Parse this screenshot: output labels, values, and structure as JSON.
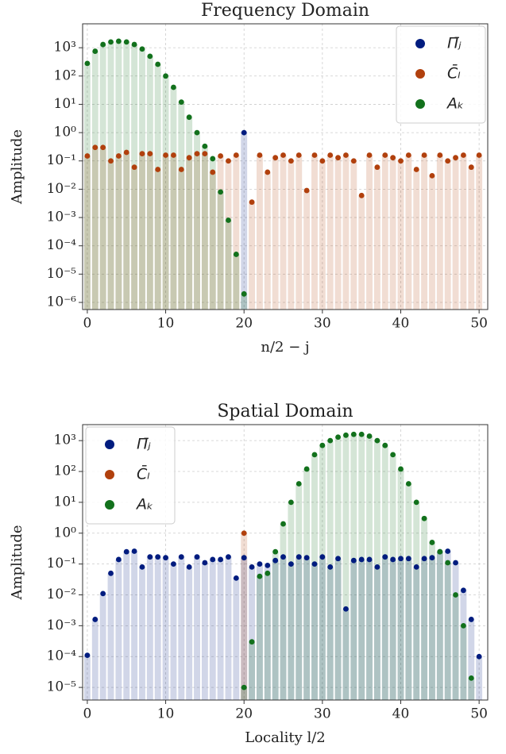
{
  "chart_data": [
    {
      "type": "bar-scatter",
      "title": "Frequency Domain",
      "xlabel": "n/2 − j",
      "ylabel": "Amplitude",
      "log_y": true,
      "grid": true,
      "legend": "upper right",
      "xlim": [
        -0.6,
        51.1
      ],
      "xticks": [
        0,
        10,
        20,
        30,
        40,
        50
      ],
      "ylim": [
        5.6e-07,
        7000
      ],
      "yticks": [
        {
          "value": 1e-06,
          "label": "10⁻⁶"
        },
        {
          "value": 1e-05,
          "label": "10⁻⁵"
        },
        {
          "value": 0.0001,
          "label": "10⁻⁴"
        },
        {
          "value": 0.001,
          "label": "10⁻³"
        },
        {
          "value": 0.01,
          "label": "10⁻²"
        },
        {
          "value": 0.1,
          "label": "10⁻¹"
        },
        {
          "value": 1,
          "label": "10⁰"
        },
        {
          "value": 10,
          "label": "10¹"
        },
        {
          "value": 100,
          "label": "10²"
        },
        {
          "value": 1000,
          "label": "10³"
        }
      ],
      "x": [
        0,
        1,
        2,
        3,
        4,
        5,
        6,
        7,
        8,
        9,
        10,
        11,
        12,
        13,
        14,
        15,
        16,
        17,
        18,
        19,
        20,
        21,
        22,
        23,
        24,
        25,
        26,
        27,
        28,
        29,
        30,
        31,
        32,
        33,
        34,
        35,
        36,
        37,
        38,
        39,
        40,
        41,
        42,
        43,
        44,
        45,
        46,
        47,
        48,
        49,
        50
      ],
      "series": [
        {
          "name": "Π̄ⱼ",
          "color": "#001c7f",
          "values": [
            null,
            null,
            null,
            null,
            null,
            null,
            null,
            null,
            null,
            null,
            null,
            null,
            null,
            null,
            null,
            null,
            null,
            null,
            null,
            null,
            1,
            null,
            null,
            null,
            null,
            null,
            null,
            null,
            null,
            null,
            null,
            null,
            null,
            null,
            null,
            null,
            null,
            null,
            null,
            null,
            null,
            null,
            null,
            null,
            null,
            null,
            null,
            null,
            null,
            null,
            null
          ]
        },
        {
          "name": "C̄ₗ",
          "color": "#b1400d",
          "values": [
            0.15,
            0.3,
            0.3,
            0.1,
            0.15,
            0.2,
            0.06,
            0.18,
            0.18,
            0.05,
            0.16,
            0.16,
            0.05,
            0.13,
            0.18,
            0.18,
            0.04,
            0.15,
            0.1,
            0.16,
            null,
            0.0035,
            0.16,
            0.04,
            0.13,
            0.16,
            0.1,
            0.16,
            0.009,
            0.16,
            0.1,
            0.16,
            0.13,
            0.16,
            0.1,
            0.006,
            0.16,
            0.06,
            0.16,
            0.13,
            0.1,
            0.16,
            0.05,
            0.16,
            0.03,
            0.16,
            0.1,
            0.13,
            0.16,
            0.06,
            0.16
          ]
        },
        {
          "name": "Aₖ",
          "color": "#12711c",
          "values": [
            280,
            750,
            1300,
            1600,
            1700,
            1600,
            1300,
            900,
            500,
            260,
            100,
            40,
            12,
            3.5,
            1,
            0.33,
            0.12,
            0.008,
            0.0008,
            5e-05,
            2e-06,
            null,
            null,
            null,
            null,
            null,
            null,
            null,
            null,
            null,
            null,
            null,
            null,
            null,
            null,
            null,
            null,
            null,
            null,
            null,
            null,
            null,
            null,
            null,
            null,
            null,
            null,
            null,
            null,
            null,
            null
          ]
        }
      ]
    },
    {
      "type": "bar-scatter",
      "title": "Spatial Domain",
      "xlabel": "Locality l/2",
      "ylabel": "Amplitude",
      "log_y": true,
      "grid": true,
      "legend": "upper left",
      "xlim": [
        -0.6,
        51.1
      ],
      "xticks": [
        0,
        10,
        20,
        30,
        40,
        50
      ],
      "ylim": [
        3.9e-06,
        3300
      ],
      "yticks": [
        {
          "value": 1e-05,
          "label": "10⁻⁵"
        },
        {
          "value": 0.0001,
          "label": "10⁻⁴"
        },
        {
          "value": 0.001,
          "label": "10⁻³"
        },
        {
          "value": 0.01,
          "label": "10⁻²"
        },
        {
          "value": 0.1,
          "label": "10⁻¹"
        },
        {
          "value": 1,
          "label": "10⁰"
        },
        {
          "value": 10,
          "label": "10¹"
        },
        {
          "value": 100,
          "label": "10²"
        },
        {
          "value": 1000,
          "label": "10³"
        }
      ],
      "x": [
        0,
        1,
        2,
        3,
        4,
        5,
        6,
        7,
        8,
        9,
        10,
        11,
        12,
        13,
        14,
        15,
        16,
        17,
        18,
        19,
        20,
        21,
        22,
        23,
        24,
        25,
        26,
        27,
        28,
        29,
        30,
        31,
        32,
        33,
        34,
        35,
        36,
        37,
        38,
        39,
        40,
        41,
        42,
        43,
        44,
        45,
        46,
        47,
        48,
        49,
        50
      ],
      "series": [
        {
          "name": "Π̄ⱼ",
          "color": "#001c7f",
          "values": [
            0.00011,
            0.0016,
            0.011,
            0.05,
            0.14,
            0.25,
            0.26,
            0.08,
            0.17,
            0.17,
            0.16,
            0.1,
            0.17,
            0.08,
            0.17,
            0.11,
            0.14,
            0.14,
            0.17,
            0.035,
            0.16,
            0.08,
            0.1,
            0.09,
            0.13,
            0.17,
            0.1,
            0.17,
            0.16,
            0.1,
            0.17,
            0.08,
            0.15,
            0.0035,
            0.13,
            0.14,
            0.14,
            0.08,
            0.17,
            0.14,
            0.15,
            0.15,
            0.08,
            0.15,
            0.16,
            0.25,
            0.26,
            0.11,
            0.014,
            0.0016,
            0.0001
          ]
        },
        {
          "name": "C̄ₗ",
          "color": "#b1400d",
          "values": [
            null,
            null,
            null,
            null,
            null,
            null,
            null,
            null,
            null,
            null,
            null,
            null,
            null,
            null,
            null,
            null,
            null,
            null,
            null,
            null,
            1,
            null,
            null,
            null,
            null,
            null,
            null,
            null,
            null,
            null,
            null,
            null,
            null,
            null,
            null,
            null,
            null,
            null,
            null,
            null,
            null,
            null,
            null,
            null,
            null,
            null,
            null,
            null,
            null,
            null,
            null
          ]
        },
        {
          "name": "Aₖ",
          "color": "#12711c",
          "values": [
            null,
            null,
            null,
            null,
            null,
            null,
            null,
            null,
            null,
            null,
            null,
            null,
            null,
            null,
            null,
            null,
            null,
            null,
            null,
            null,
            1e-05,
            0.0003,
            0.04,
            0.05,
            0.25,
            2,
            10,
            40,
            120,
            350,
            700,
            1000,
            1300,
            1500,
            1600,
            1600,
            1400,
            1000,
            700,
            350,
            120,
            40,
            10,
            3,
            0.5,
            0.25,
            0.11,
            0.01,
            0.001,
            2e-05,
            null
          ]
        }
      ]
    }
  ]
}
